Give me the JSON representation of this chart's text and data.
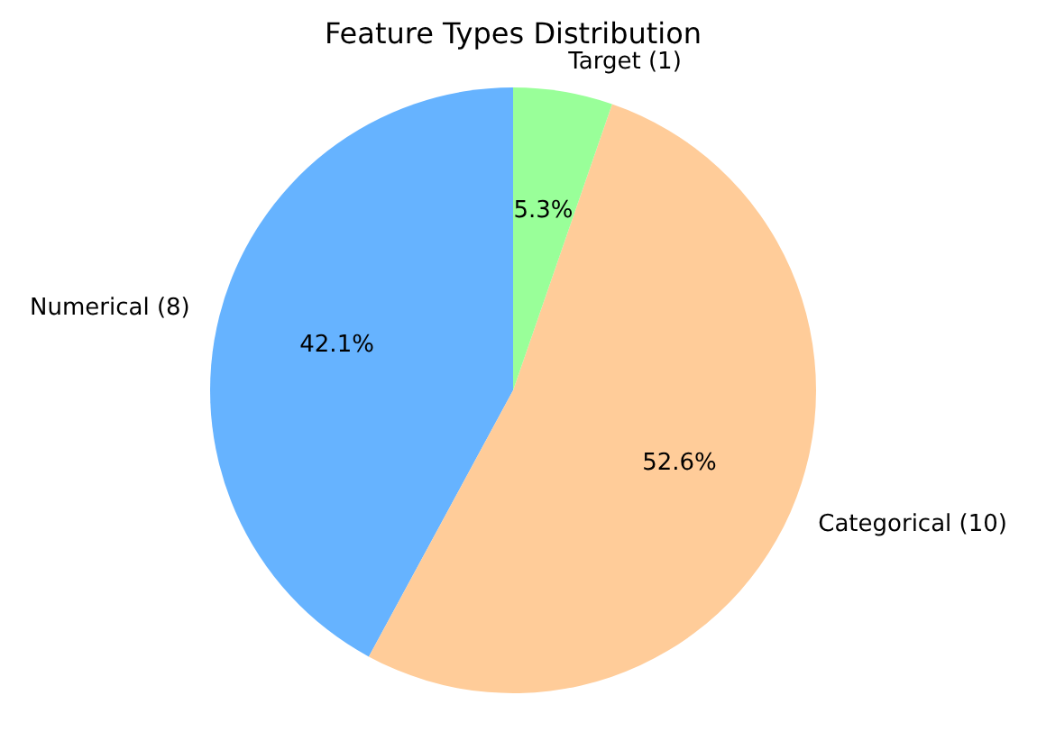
{
  "chart_data": {
    "type": "pie",
    "title": "Feature Types Distribution",
    "categories": [
      "Numerical (8)",
      "Categorical (10)",
      "Target (1)"
    ],
    "values": [
      42.1,
      52.6,
      5.3
    ],
    "colors": [
      "#66b3ff",
      "#ffcc99",
      "#99ff99"
    ],
    "value_labels": [
      "42.1%",
      "52.6%",
      "5.3%"
    ]
  }
}
